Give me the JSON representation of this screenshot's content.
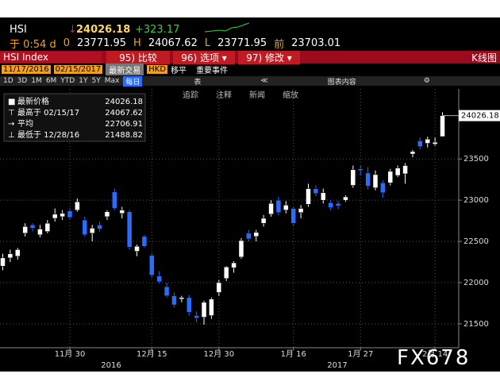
{
  "header": {
    "ticker": "HSI",
    "last": "24026.18",
    "change": "+323.17",
    "quote": [
      "于 0:54 d",
      "0",
      "23771.95",
      "H",
      "24067.62",
      "L",
      "23771.95",
      "前",
      "23703.01"
    ]
  },
  "menu": [
    "HSI Index",
    "95) 比较",
    "96) 选项 ▾",
    "97) 修改 ▾",
    "K线图"
  ],
  "range_bar": [
    "11/17/2016",
    "02/15/2017",
    "最新交易",
    "HKD",
    "移平",
    "重要事件"
  ],
  "periods": [
    "1D",
    "3D",
    "1M",
    "6M",
    "YTD",
    "1Y",
    "5Y",
    "Max"
  ],
  "frequency": "每日",
  "table_button": "表",
  "chart_content": "图表内容",
  "tools": [
    "追踪",
    "注释",
    "新闻",
    "缩放"
  ],
  "watermark": "FX678",
  "chart_data": {
    "type": "candlestick",
    "categories": [
      null,
      null,
      null,
      null,
      null,
      null,
      null,
      null,
      null,
      "11月 30",
      null,
      null,
      null,
      null,
      null,
      null,
      null,
      null,
      null,
      null,
      "12月 15",
      null,
      null,
      null,
      null,
      null,
      null,
      null,
      null,
      "12月 30",
      null,
      null,
      null,
      null,
      null,
      null,
      null,
      null,
      null,
      "1月 16",
      null,
      null,
      null,
      null,
      null,
      null,
      null,
      null,
      "1月 27",
      null,
      null,
      null,
      null,
      null,
      null,
      null,
      null,
      null,
      "2月 14",
      null
    ],
    "x_groups": [
      "2016",
      "2017"
    ],
    "open": [
      22200,
      22300,
      22320,
      22600,
      22700,
      22580,
      22620,
      22780,
      22800,
      22870,
      22880,
      22760,
      22600,
      22700,
      22800,
      23100,
      22840,
      22860,
      22380,
      22560,
      22330,
      22080,
      21950,
      21840,
      21800,
      21820,
      21600,
      21580,
      21600,
      21880,
      22050,
      22180,
      22310,
      22600,
      22560,
      22720,
      22830,
      23000,
      22880,
      22900,
      22850,
      22950,
      23140,
      23000,
      22970,
      22960,
      23000,
      23180,
      23380,
      23330,
      23150,
      23210,
      23210,
      23300,
      23320,
      23560,
      23720,
      23690,
      23680,
      23771.95
    ],
    "high": [
      22350,
      22400,
      22420,
      22720,
      22720,
      22700,
      22760,
      22900,
      22880,
      22900,
      23020,
      22800,
      22700,
      22740,
      22880,
      23140,
      22920,
      22880,
      22460,
      22580,
      22360,
      22140,
      22000,
      21880,
      21840,
      21850,
      21650,
      21780,
      21820,
      22030,
      22200,
      22260,
      22540,
      22640,
      22640,
      22820,
      23000,
      23040,
      22990,
      22920,
      22940,
      23200,
      23180,
      23140,
      23000,
      22990,
      23060,
      23420,
      23420,
      23400,
      23360,
      23240,
      23380,
      23420,
      23450,
      23610,
      23760,
      23770,
      23760,
      24067.62
    ],
    "low": [
      22150,
      22250,
      22280,
      22560,
      22620,
      22550,
      22600,
      22740,
      22760,
      22770,
      22860,
      22560,
      22500,
      22620,
      22760,
      22880,
      22780,
      22400,
      22320,
      22420,
      22060,
      21990,
      21820,
      21700,
      21760,
      21600,
      21520,
      21488.82,
      21560,
      21840,
      22020,
      22120,
      22290,
      22500,
      22500,
      22680,
      22800,
      22820,
      22840,
      22690,
      22780,
      22920,
      23050,
      22960,
      22880,
      22890,
      22980,
      23150,
      23300,
      23130,
      23120,
      23030,
      23180,
      23280,
      23200,
      23520,
      23620,
      23640,
      23660,
      23771.95
    ],
    "close": [
      22300,
      22350,
      22400,
      22680,
      22660,
      22650,
      22720,
      22830,
      22840,
      22790,
      22980,
      22580,
      22660,
      22650,
      22860,
      22900,
      22880,
      22430,
      22440,
      22440,
      22090,
      22010,
      21840,
      21730,
      21820,
      21640,
      21570,
      21760,
      21800,
      22000,
      22190,
      22240,
      22510,
      22530,
      22610,
      22780,
      22960,
      22850,
      22940,
      22720,
      22900,
      23140,
      23080,
      23090,
      22910,
      22930,
      23040,
      23370,
      23360,
      23170,
      23310,
      23090,
      23350,
      23390,
      23420,
      23590,
      23650,
      23740,
      23703.01,
      24026.18
    ],
    "up_color": "#ffffff",
    "down_color": "#2a6cff",
    "last_line_color": "#f0a020",
    "legend": [
      {
        "label": "最新价格",
        "value": 24026.18
      },
      {
        "label": "最高于 02/15/17",
        "value": 24067.62
      },
      {
        "label": "平均",
        "value": 22706.91
      },
      {
        "label": "最低于 12/28/16",
        "value": 21488.82
      }
    ],
    "ylim": [
      21210,
      24350
    ],
    "yticks": [
      21500,
      22000,
      22500,
      23000,
      23500
    ],
    "grid": true
  }
}
